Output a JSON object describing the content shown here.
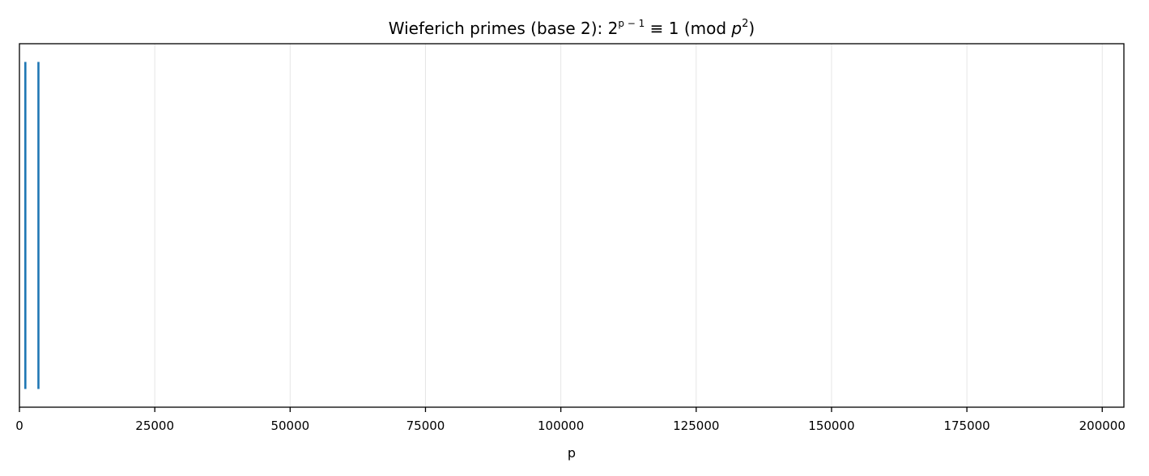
{
  "chart_data": {
    "type": "line",
    "title": {
      "prefix": "Wieferich primes (base 2): 2",
      "exponent": "p − 1",
      "middle": " ≡ 1 (mod ",
      "var": "p",
      "var_exponent": "2",
      "suffix": ")"
    },
    "xlabel": "p",
    "ylabel": "",
    "xlim": [
      0,
      204000
    ],
    "ylim": [
      0,
      1
    ],
    "x_ticks": [
      0,
      25000,
      50000,
      75000,
      100000,
      125000,
      150000,
      175000,
      200000
    ],
    "x_tick_labels": [
      "0",
      "25000",
      "50000",
      "75000",
      "100000",
      "125000",
      "150000",
      "175000",
      "200000"
    ],
    "grid": "vertical",
    "y_ticks_visible": false,
    "series": [
      {
        "type": "vlines",
        "color": "#1f77b4",
        "x": [
          1093,
          3511
        ],
        "y_from": 0.05,
        "y_to": 0.95
      }
    ],
    "colors": {
      "series": "#1f77b4",
      "grid": "#e6e6e6",
      "axis": "#000000"
    }
  }
}
